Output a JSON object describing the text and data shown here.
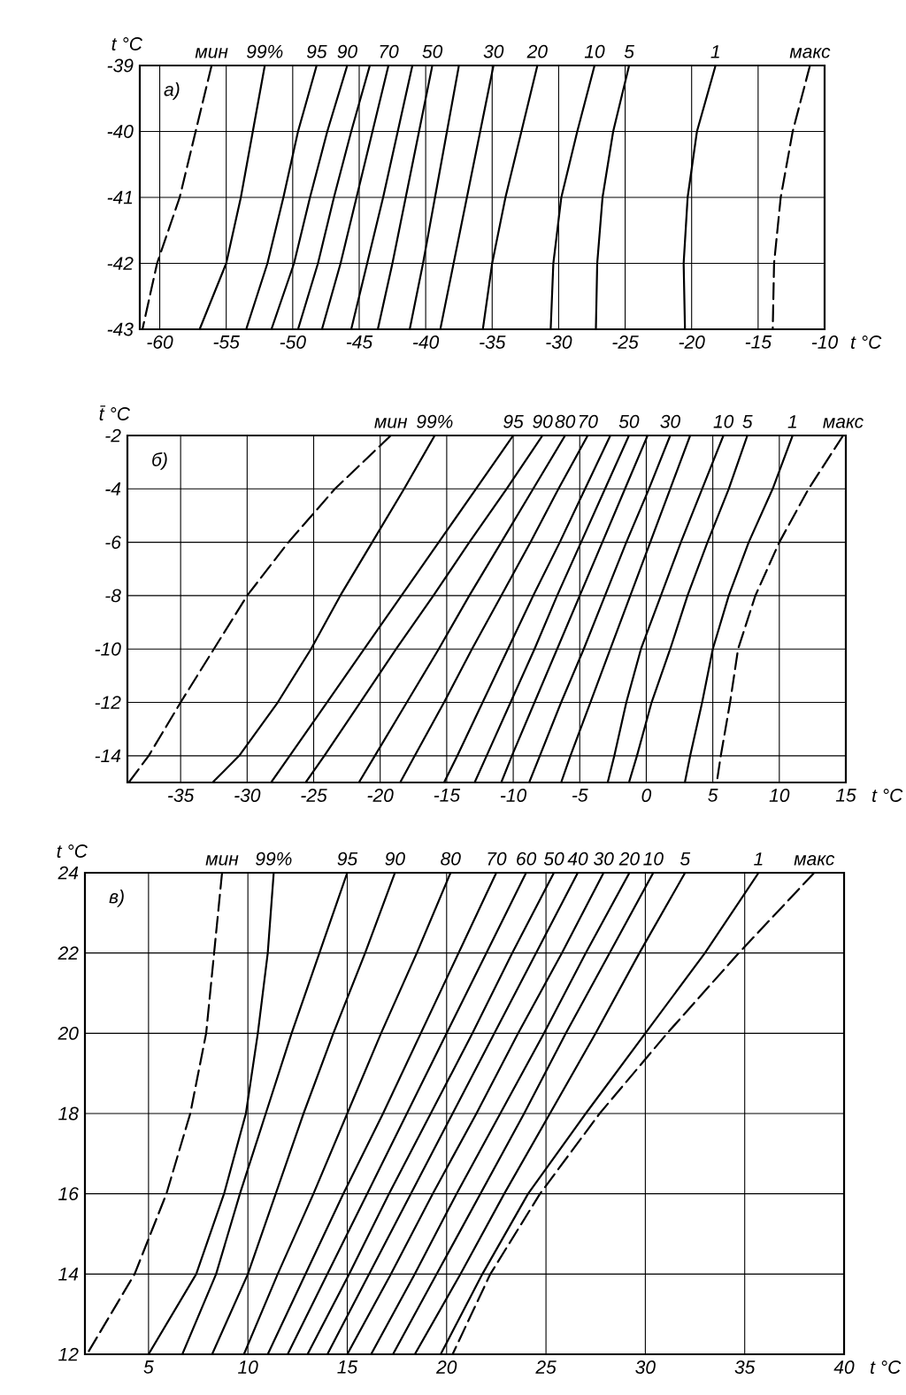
{
  "chart_data": [
    {
      "type": "line",
      "title": "а)",
      "xlabel": "t °C",
      "ylabel": "t °C",
      "xlim": [
        -61.5,
        -10
      ],
      "ylim": [
        -43,
        -39
      ],
      "xticks": [
        -60,
        -55,
        -50,
        -45,
        -40,
        -35,
        -30,
        -25,
        -20,
        -15,
        -10
      ],
      "yticks": [
        -43,
        -42,
        -41,
        -40,
        -39
      ],
      "grid": true,
      "marker": "none",
      "series": [
        {
          "name": "мин",
          "color": "#000000",
          "line_style": "dashed",
          "x": [
            -56.1,
            -57.3,
            -58.5,
            -60.2,
            -61.3
          ],
          "values": [
            -39,
            -40,
            -41,
            -42,
            -43
          ]
        },
        {
          "name": "99%",
          "color": "#000000",
          "x": [
            -52.1,
            -53.0,
            -53.9,
            -55.0,
            -57.0
          ],
          "values": [
            -39,
            -40,
            -41,
            -42,
            -43
          ]
        },
        {
          "name": "95",
          "color": "#000000",
          "x": [
            -48.2,
            -49.6,
            -50.7,
            -51.9,
            -53.5
          ],
          "values": [
            -39,
            -40,
            -41,
            -42,
            -43
          ]
        },
        {
          "name": "90",
          "color": "#000000",
          "x": [
            -45.9,
            -47.4,
            -48.7,
            -49.9,
            -51.6
          ],
          "values": [
            -39,
            -40,
            -41,
            -42,
            -43
          ]
        },
        {
          "color": "#000000",
          "x": [
            -44.2,
            -45.6,
            -46.9,
            -48.1,
            -49.6
          ],
          "values": [
            -39,
            -40,
            -41,
            -42,
            -43
          ]
        },
        {
          "name": "70",
          "color": "#000000",
          "x": [
            -42.8,
            -44.0,
            -45.2,
            -46.4,
            -47.8
          ],
          "values": [
            -39,
            -40,
            -41,
            -42,
            -43
          ]
        },
        {
          "color": "#000000",
          "x": [
            -41.0,
            -42.1,
            -43.2,
            -44.4,
            -45.6
          ],
          "values": [
            -39,
            -40,
            -41,
            -42,
            -43
          ]
        },
        {
          "name": "50",
          "color": "#000000",
          "x": [
            -39.5,
            -40.5,
            -41.5,
            -42.5,
            -43.6
          ],
          "values": [
            -39,
            -40,
            -41,
            -42,
            -43
          ]
        },
        {
          "color": "#000000",
          "x": [
            -37.5,
            -38.4,
            -39.3,
            -40.2,
            -41.2
          ],
          "values": [
            -39,
            -40,
            -41,
            -42,
            -43
          ]
        },
        {
          "name": "30",
          "color": "#000000",
          "x": [
            -34.9,
            -35.9,
            -36.9,
            -37.9,
            -38.9
          ],
          "values": [
            -39,
            -40,
            -41,
            -42,
            -43
          ]
        },
        {
          "name": "20",
          "color": "#000000",
          "x": [
            -31.6,
            -32.8,
            -34.0,
            -35.0,
            -35.7
          ],
          "values": [
            -39,
            -40,
            -41,
            -42,
            -43
          ]
        },
        {
          "name": "10",
          "color": "#000000",
          "x": [
            -27.3,
            -28.6,
            -29.8,
            -30.4,
            -30.6
          ],
          "values": [
            -39,
            -40,
            -41,
            -42,
            -43
          ]
        },
        {
          "name": "5",
          "color": "#000000",
          "x": [
            -24.7,
            -25.9,
            -26.7,
            -27.1,
            -27.2
          ],
          "values": [
            -39,
            -40,
            -41,
            -42,
            -43
          ]
        },
        {
          "name": "1",
          "color": "#000000",
          "x": [
            -18.2,
            -19.6,
            -20.3,
            -20.6,
            -20.5
          ],
          "values": [
            -39,
            -40,
            -41,
            -42,
            -43
          ]
        },
        {
          "name": "макс",
          "color": "#000000",
          "line_style": "dashed",
          "x": [
            -11.1,
            -12.4,
            -13.3,
            -13.8,
            -13.9
          ],
          "values": [
            -39,
            -40,
            -41,
            -42,
            -43
          ]
        }
      ]
    },
    {
      "type": "line",
      "title": "б)",
      "xlabel": "t °C",
      "ylabel": "t̄ °C",
      "xlim": [
        -39,
        15
      ],
      "ylim": [
        -15,
        -2
      ],
      "xticks": [
        -35,
        -30,
        -25,
        -20,
        -15,
        -10,
        -5,
        0,
        5,
        10,
        15
      ],
      "yticks": [
        -14,
        -12,
        -10,
        -8,
        -6,
        -4,
        -2
      ],
      "grid": true,
      "marker": "none",
      "series": [
        {
          "name": "мин",
          "color": "#000000",
          "line_style": "dashed",
          "x": [
            -19.2,
            -23.4,
            -26.9,
            -30.0,
            -32.5,
            -35.0,
            -37.4,
            -38.9
          ],
          "values": [
            -2,
            -4,
            -6,
            -8,
            -10,
            -12,
            -14,
            -15
          ]
        },
        {
          "name": "99%",
          "color": "#000000",
          "x": [
            -15.9,
            -18.2,
            -20.6,
            -23.0,
            -25.2,
            -27.7,
            -30.6,
            -32.6
          ],
          "values": [
            -2,
            -4,
            -6,
            -8,
            -10,
            -12,
            -14,
            -15
          ]
        },
        {
          "name": "95",
          "color": "#000000",
          "x": [
            -10.0,
            -12.8,
            -15.6,
            -18.4,
            -21.2,
            -24.0,
            -26.8,
            -28.2
          ],
          "values": [
            -2,
            -4,
            -6,
            -8,
            -10,
            -12,
            -14,
            -15
          ]
        },
        {
          "name": "90",
          "color": "#000000",
          "x": [
            -7.8,
            -10.5,
            -13.3,
            -16.0,
            -18.8,
            -21.5,
            -24.2,
            -25.6
          ],
          "values": [
            -2,
            -4,
            -6,
            -8,
            -10,
            -12,
            -14,
            -15
          ]
        },
        {
          "name": "80",
          "color": "#000000",
          "x": [
            -6.1,
            -8.5,
            -10.9,
            -13.3,
            -15.6,
            -18.0,
            -20.4,
            -21.6
          ],
          "values": [
            -2,
            -4,
            -6,
            -8,
            -10,
            -12,
            -14,
            -15
          ]
        },
        {
          "name": "70",
          "color": "#000000",
          "x": [
            -4.4,
            -6.6,
            -8.7,
            -10.9,
            -13.1,
            -15.2,
            -17.4,
            -18.5
          ],
          "values": [
            -2,
            -4,
            -6,
            -8,
            -10,
            -12,
            -14,
            -15
          ]
        },
        {
          "color": "#000000",
          "x": [
            -2.7,
            -4.6,
            -6.5,
            -8.5,
            -10.4,
            -12.3,
            -14.2,
            -15.2
          ],
          "values": [
            -2,
            -4,
            -6,
            -8,
            -10,
            -12,
            -14,
            -15
          ]
        },
        {
          "name": "50",
          "color": "#000000",
          "x": [
            -1.3,
            -3.1,
            -4.9,
            -6.7,
            -8.4,
            -10.2,
            -12.0,
            -12.9
          ],
          "values": [
            -2,
            -4,
            -6,
            -8,
            -10,
            -12,
            -14,
            -15
          ]
        },
        {
          "color": "#000000",
          "x": [
            0.1,
            -1.6,
            -3.3,
            -5.0,
            -6.7,
            -8.4,
            -10.1,
            -10.9
          ],
          "values": [
            -2,
            -4,
            -6,
            -8,
            -10,
            -12,
            -14,
            -15
          ]
        },
        {
          "name": "30",
          "color": "#000000",
          "x": [
            1.8,
            0.2,
            -1.5,
            -3.1,
            -4.7,
            -6.4,
            -8.0,
            -8.8
          ],
          "values": [
            -2,
            -4,
            -6,
            -8,
            -10,
            -12,
            -14,
            -15
          ]
        },
        {
          "color": "#000000",
          "x": [
            3.3,
            1.8,
            0.3,
            -1.2,
            -2.7,
            -4.2,
            -5.7,
            -6.4
          ],
          "values": [
            -2,
            -4,
            -6,
            -8,
            -10,
            -12,
            -14,
            -15
          ]
        },
        {
          "name": "10",
          "color": "#000000",
          "x": [
            5.8,
            4.2,
            2.6,
            1.1,
            -0.4,
            -1.5,
            -2.4,
            -2.9
          ],
          "values": [
            -2,
            -4,
            -6,
            -8,
            -10,
            -12,
            -14,
            -15
          ]
        },
        {
          "name": "5",
          "color": "#000000",
          "x": [
            7.6,
            6.2,
            4.6,
            3.1,
            1.8,
            0.4,
            -0.7,
            -1.3
          ],
          "values": [
            -2,
            -4,
            -6,
            -8,
            -10,
            -12,
            -14,
            -15
          ]
        },
        {
          "name": "1",
          "color": "#000000",
          "x": [
            11.0,
            9.5,
            7.7,
            6.2,
            5.0,
            4.2,
            3.3,
            2.9
          ],
          "values": [
            -2,
            -4,
            -6,
            -8,
            -10,
            -12,
            -14,
            -15
          ]
        },
        {
          "name": "макс",
          "color": "#000000",
          "line_style": "dashed",
          "x": [
            14.8,
            12.2,
            10.0,
            8.2,
            6.9,
            6.3,
            5.6,
            5.3
          ],
          "values": [
            -2,
            -4,
            -6,
            -8,
            -10,
            -12,
            -14,
            -15
          ]
        }
      ]
    },
    {
      "type": "line",
      "title": "в)",
      "xlabel": "t °C",
      "ylabel": "t °C",
      "xlim": [
        1.8,
        40
      ],
      "ylim": [
        12,
        24
      ],
      "xticks": [
        5,
        10,
        15,
        20,
        25,
        30,
        35,
        40
      ],
      "yticks": [
        12,
        14,
        16,
        18,
        20,
        22,
        24
      ],
      "grid": true,
      "marker": "none",
      "series": [
        {
          "name": "мин",
          "color": "#000000",
          "line_style": "dashed",
          "x": [
            8.7,
            8.3,
            7.9,
            7.1,
            5.9,
            4.3,
            1.9
          ],
          "values": [
            24,
            22,
            20,
            18,
            16,
            14,
            12
          ]
        },
        {
          "name": "99%",
          "color": "#000000",
          "x": [
            11.3,
            11.0,
            10.5,
            9.9,
            8.8,
            7.4,
            5.0
          ],
          "values": [
            24,
            22,
            20,
            18,
            16,
            14,
            12
          ]
        },
        {
          "name": "95",
          "color": "#000000",
          "x": [
            15.0,
            13.6,
            12.2,
            10.9,
            9.6,
            8.4,
            6.7
          ],
          "values": [
            24,
            22,
            20,
            18,
            16,
            14,
            12
          ]
        },
        {
          "name": "90",
          "color": "#000000",
          "x": [
            17.4,
            15.9,
            14.3,
            12.8,
            11.4,
            10.0,
            8.2
          ],
          "values": [
            24,
            22,
            20,
            18,
            16,
            14,
            12
          ]
        },
        {
          "name": "80",
          "color": "#000000",
          "x": [
            20.2,
            18.5,
            16.7,
            15.0,
            13.3,
            11.5,
            9.8
          ],
          "values": [
            24,
            22,
            20,
            18,
            16,
            14,
            12
          ]
        },
        {
          "name": "70",
          "color": "#000000",
          "x": [
            22.5,
            20.6,
            18.7,
            16.8,
            14.8,
            12.9,
            11.0
          ],
          "values": [
            24,
            22,
            20,
            18,
            16,
            14,
            12
          ]
        },
        {
          "name": "60",
          "color": "#000000",
          "x": [
            24.0,
            22.0,
            20.0,
            18.0,
            16.0,
            14.0,
            12.0
          ],
          "values": [
            24,
            22,
            20,
            18,
            16,
            14,
            12
          ]
        },
        {
          "name": "50",
          "color": "#000000",
          "x": [
            25.4,
            23.3,
            21.3,
            19.2,
            17.1,
            15.1,
            13.0
          ],
          "values": [
            24,
            22,
            20,
            18,
            16,
            14,
            12
          ]
        },
        {
          "name": "40",
          "color": "#000000",
          "x": [
            26.6,
            24.5,
            22.4,
            20.3,
            18.2,
            16.1,
            14.0
          ],
          "values": [
            24,
            22,
            20,
            18,
            16,
            14,
            12
          ]
        },
        {
          "name": "30",
          "color": "#000000",
          "x": [
            27.9,
            25.8,
            23.6,
            21.5,
            19.3,
            17.2,
            15.0
          ],
          "values": [
            24,
            22,
            20,
            18,
            16,
            14,
            12
          ]
        },
        {
          "name": "20",
          "color": "#000000",
          "x": [
            29.2,
            27.0,
            24.9,
            22.7,
            20.5,
            18.4,
            16.2
          ],
          "values": [
            24,
            22,
            20,
            18,
            16,
            14,
            12
          ]
        },
        {
          "name": "10",
          "color": "#000000",
          "x": [
            30.4,
            28.2,
            26.0,
            23.9,
            21.7,
            19.5,
            17.3
          ],
          "values": [
            24,
            22,
            20,
            18,
            16,
            14,
            12
          ]
        },
        {
          "name": "5",
          "color": "#000000",
          "x": [
            32.0,
            29.7,
            27.5,
            25.2,
            22.9,
            20.7,
            18.4
          ],
          "values": [
            24,
            22,
            20,
            18,
            16,
            14,
            12
          ]
        },
        {
          "name": "1",
          "color": "#000000",
          "x": [
            35.7,
            33.0,
            30.0,
            27.0,
            24.1,
            21.8,
            19.7
          ],
          "values": [
            24,
            22,
            20,
            18,
            16,
            14,
            12
          ]
        },
        {
          "name": "макс",
          "color": "#000000",
          "line_style": "dashed",
          "x": [
            38.5,
            34.7,
            31.1,
            27.7,
            24.7,
            22.2,
            20.3
          ],
          "values": [
            24,
            22,
            20,
            18,
            16,
            14,
            12
          ]
        }
      ]
    }
  ]
}
